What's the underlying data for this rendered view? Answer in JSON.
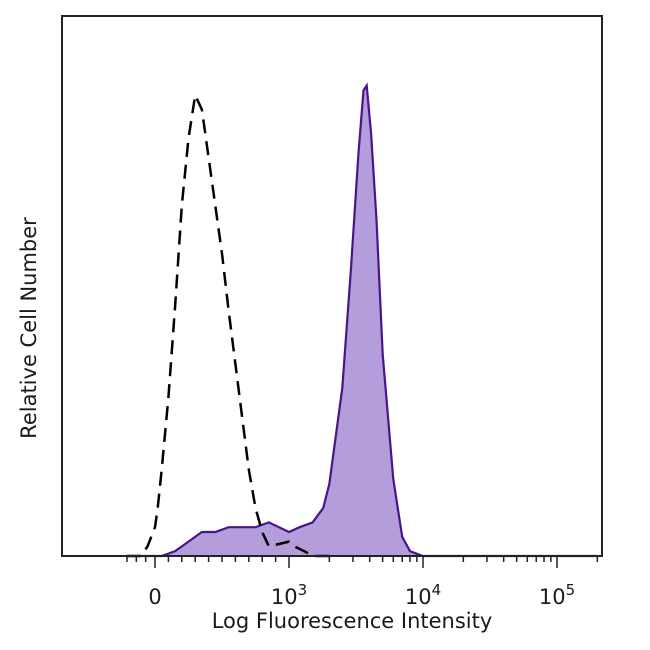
{
  "chart_data": {
    "type": "area",
    "title": "",
    "xlabel": "Log Fluorescence Intensity",
    "ylabel": "Relative Cell Number",
    "x_scale": "biexponential",
    "xlim": [
      -300,
      200000
    ],
    "ylim": [
      0,
      1.0
    ],
    "x_ticks": [
      {
        "value": 0,
        "base": "0",
        "exp": ""
      },
      {
        "value": 1000,
        "base": "10",
        "exp": "3"
      },
      {
        "value": 10000,
        "base": "10",
        "exp": "4"
      },
      {
        "value": 100000,
        "base": "10",
        "exp": "5"
      }
    ],
    "grid": false,
    "legend": "none",
    "colors": {
      "stained_fill": "#b39ddb",
      "stained_line": "#4a148c",
      "control_line": "#000000"
    },
    "series": [
      {
        "style": "dashed-outline",
        "x": [
          -300,
          -150,
          -80,
          0,
          20,
          50,
          100,
          150,
          200,
          250,
          300,
          350,
          400,
          450,
          500,
          550,
          600,
          650,
          700,
          750,
          800,
          850,
          1000,
          1100,
          1300,
          1500,
          2000
        ],
        "y": [
          0.0,
          0.0,
          0.02,
          0.06,
          0.1,
          0.18,
          0.33,
          0.52,
          0.73,
          0.87,
          0.96,
          0.93,
          0.83,
          0.73,
          0.63,
          0.51,
          0.4,
          0.29,
          0.18,
          0.1,
          0.05,
          0.02,
          0.03,
          0.02,
          0.01,
          0.0,
          0.0
        ]
      },
      {
        "style": "filled",
        "x": [
          -300,
          50,
          150,
          250,
          350,
          450,
          550,
          650,
          750,
          850,
          1000,
          1200,
          1500,
          1800,
          2000,
          2500,
          2900,
          3300,
          3600,
          3800,
          4100,
          4500,
          5000,
          6000,
          7000,
          8000,
          10000,
          30000,
          200000
        ],
        "y": [
          0.0,
          0.0,
          0.01,
          0.03,
          0.05,
          0.05,
          0.06,
          0.06,
          0.06,
          0.07,
          0.05,
          0.06,
          0.07,
          0.1,
          0.15,
          0.35,
          0.6,
          0.84,
          0.97,
          0.98,
          0.88,
          0.7,
          0.42,
          0.16,
          0.04,
          0.01,
          0.0,
          0.0,
          0.0
        ]
      }
    ]
  }
}
